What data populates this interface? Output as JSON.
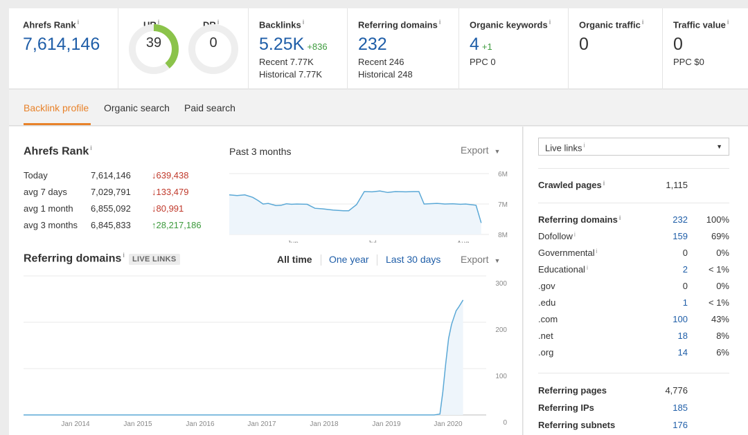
{
  "metrics": {
    "ahrefs_rank": {
      "title": "Ahrefs Rank",
      "value": "7,614,146"
    },
    "ur": {
      "label": "UR",
      "value": "39",
      "fraction": 0.39,
      "color": "#8bc34a"
    },
    "dr": {
      "label": "DR",
      "value": "0",
      "fraction": 0.0
    },
    "backlinks": {
      "title": "Backlinks",
      "value": "5.25K",
      "delta": "+836",
      "recent": "Recent 7.77K",
      "historical": "Historical 7.77K"
    },
    "referring_domains": {
      "title": "Referring domains",
      "value": "232",
      "recent": "Recent 246",
      "historical": "Historical 248"
    },
    "organic_keywords": {
      "title": "Organic keywords",
      "value": "4",
      "delta": "+1",
      "ppc": "PPC 0"
    },
    "organic_traffic": {
      "title": "Organic traffic",
      "value": "0"
    },
    "traffic_value": {
      "title": "Traffic value",
      "value": "0",
      "ppc": "PPC $0"
    }
  },
  "tabs": [
    {
      "label": "Backlink profile",
      "active": true
    },
    {
      "label": "Organic search",
      "active": false
    },
    {
      "label": "Paid search",
      "active": false
    }
  ],
  "rank_panel": {
    "title": "Ahrefs Rank",
    "period": "Past 3 months",
    "export_label": "Export",
    "rows": [
      {
        "label": "Today",
        "value": "7,614,146",
        "change": "639,438",
        "dir": "down"
      },
      {
        "label": "avg 7 days",
        "value": "7,029,791",
        "change": "133,479",
        "dir": "down"
      },
      {
        "label": "avg 1 month",
        "value": "6,855,092",
        "change": "80,991",
        "dir": "down"
      },
      {
        "label": "avg 3 months",
        "value": "6,845,833",
        "change": "28,217,186",
        "dir": "up"
      }
    ],
    "arrow_down": "↓",
    "arrow_up": "↑"
  },
  "domains_panel": {
    "title": "Referring domains",
    "badge": "LIVE LINKS",
    "ranges": [
      "All time",
      "One year",
      "Last 30 days"
    ],
    "export_label": "Export"
  },
  "chart_data": [
    {
      "type": "area",
      "title": "Ahrefs Rank",
      "x_ticks": [
        "Jun",
        "Jul",
        "Aug"
      ],
      "y_ticks": [
        "6M",
        "7M",
        "8M"
      ],
      "ylim": [
        6000000,
        8000000
      ],
      "y_inverted": true,
      "x": [
        0,
        3,
        6,
        9,
        11,
        13,
        15,
        18,
        20,
        22,
        24,
        26,
        30,
        33,
        36,
        40,
        44,
        46,
        49,
        52,
        55,
        58,
        61,
        64,
        68,
        71,
        73,
        75,
        77,
        80,
        83,
        86,
        89,
        91,
        93,
        95,
        97
      ],
      "values": [
        6700000,
        6720000,
        6700000,
        6780000,
        6880000,
        7000000,
        6980000,
        7050000,
        7040000,
        6990000,
        7010000,
        7000000,
        7010000,
        7140000,
        7160000,
        7200000,
        7220000,
        7220000,
        7020000,
        6590000,
        6600000,
        6570000,
        6620000,
        6590000,
        6600000,
        6590000,
        6590000,
        7000000,
        6990000,
        6980000,
        7000000,
        6990000,
        7010000,
        7000000,
        7020000,
        7040000,
        7620000
      ],
      "color": "#5aa8d6"
    },
    {
      "type": "area",
      "title": "Referring domains",
      "x_ticks": [
        "Jan 2014",
        "Jan 2015",
        "Jan 2016",
        "Jan 2017",
        "Jan 2018",
        "Jan 2019",
        "Jan 2020"
      ],
      "y_ticks": [
        "300",
        "200",
        "100",
        "0"
      ],
      "ylim": [
        0,
        300
      ],
      "x": [
        0,
        10,
        20,
        30,
        40,
        50,
        60,
        70,
        71,
        72,
        72.5,
        73,
        73.5,
        74,
        74.4,
        74.8,
        75.2,
        75.6,
        76
      ],
      "values": [
        0,
        0,
        0,
        0,
        0,
        0,
        0,
        0,
        0,
        2,
        50,
        110,
        165,
        195,
        210,
        225,
        232,
        240,
        248
      ],
      "color": "#5aa8d6"
    }
  ],
  "side_panel": {
    "select_value": "Live links",
    "crawled": {
      "label": "Crawled pages",
      "value": "1,115"
    },
    "ref_domains_rows": [
      {
        "label": "Referring domains",
        "value": "232",
        "pct": "100%",
        "bold": true,
        "info": true
      },
      {
        "label": "Dofollow",
        "value": "159",
        "pct": "69%",
        "info": true
      },
      {
        "label": "Governmental",
        "value": "0",
        "pct": "0%",
        "info": true,
        "plain": true
      },
      {
        "label": "Educational",
        "value": "2",
        "pct": "< 1%",
        "info": true
      },
      {
        "label": ".gov",
        "value": "0",
        "pct": "0%",
        "plain": true
      },
      {
        "label": ".edu",
        "value": "1",
        "pct": "< 1%"
      },
      {
        "label": ".com",
        "value": "100",
        "pct": "43%"
      },
      {
        "label": ".net",
        "value": "18",
        "pct": "8%"
      },
      {
        "label": ".org",
        "value": "14",
        "pct": "6%"
      }
    ],
    "bottom_rows": [
      {
        "label": "Referring pages",
        "value": "4,776",
        "plain": true
      },
      {
        "label": "Referring IPs",
        "value": "185"
      },
      {
        "label": "Referring subnets",
        "value": "176"
      }
    ]
  }
}
